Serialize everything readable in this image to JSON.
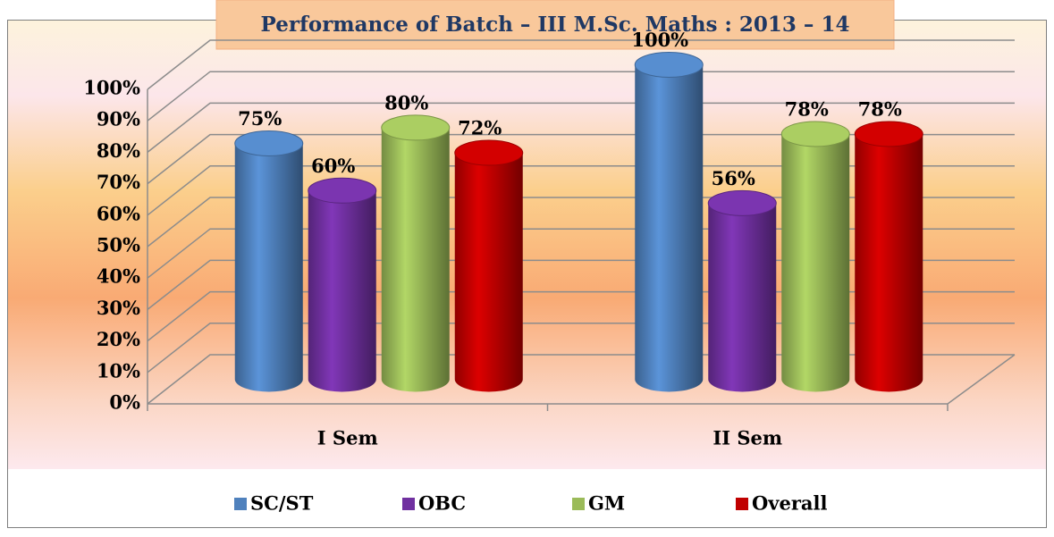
{
  "chart_data": {
    "type": "bar3d",
    "title": "Performance of Batch – III M.Sc. Maths : 2013 – 14",
    "categories": [
      "I Sem",
      "II Sem"
    ],
    "series": [
      {
        "name": "SC/ST",
        "color": "#4f81bd",
        "values": [
          75,
          100
        ],
        "value_labels": [
          "75%",
          "100%"
        ]
      },
      {
        "name": "OBC",
        "color": "#7030a0",
        "values": [
          60,
          56
        ],
        "value_labels": [
          "60%",
          "56%"
        ]
      },
      {
        "name": "GM",
        "color": "#9bbb59",
        "values": [
          80,
          78
        ],
        "value_labels": [
          "80%",
          "78%"
        ]
      },
      {
        "name": "Overall",
        "color": "#c00000",
        "values": [
          72,
          78
        ],
        "value_labels": [
          "72%",
          "78%"
        ]
      }
    ],
    "ylim": [
      0,
      100
    ],
    "yticks": [
      {
        "value": 0,
        "label": "0%"
      },
      {
        "value": 10,
        "label": "10%"
      },
      {
        "value": 20,
        "label": "20%"
      },
      {
        "value": 30,
        "label": "30%"
      },
      {
        "value": 40,
        "label": "40%"
      },
      {
        "value": 50,
        "label": "50%"
      },
      {
        "value": 60,
        "label": "60%"
      },
      {
        "value": 70,
        "label": "70%"
      },
      {
        "value": 80,
        "label": "80%"
      },
      {
        "value": 90,
        "label": "90%"
      },
      {
        "value": 100,
        "label": "100%"
      }
    ],
    "grid": true,
    "legend": "bottom"
  }
}
